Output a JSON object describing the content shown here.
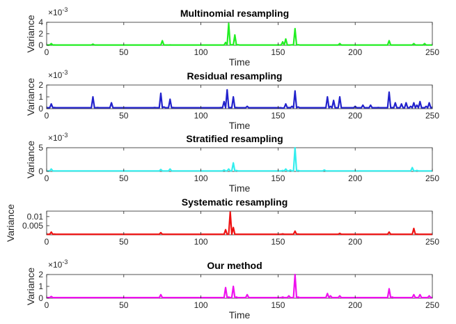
{
  "chart_data": [
    {
      "type": "line",
      "title": "Multinomial resampling",
      "xlabel": "Time",
      "ylabel": "Variance",
      "multiplier": "×10",
      "multiplier_exp": "-3",
      "color": "#22ee22",
      "xlim": [
        0,
        250
      ],
      "ylim": [
        0,
        4
      ],
      "xticks": [
        0,
        50,
        100,
        150,
        200,
        250
      ],
      "yticks": [
        0,
        2,
        4
      ],
      "ytick_labels": [
        "0",
        "2",
        "4"
      ],
      "baseline": 0.05,
      "x": [
        0,
        3,
        5,
        8,
        30,
        70,
        75,
        80,
        113,
        116,
        118,
        120,
        122,
        124,
        150,
        153,
        155,
        157,
        159,
        161,
        163,
        165,
        190,
        220,
        222,
        225,
        238,
        245
      ],
      "y": [
        0.05,
        0.3,
        0.06,
        0.05,
        0.2,
        0.05,
        0.8,
        0.06,
        0.05,
        0.5,
        3.8,
        0.1,
        1.8,
        0.1,
        0.05,
        0.6,
        1.1,
        0.05,
        0.08,
        2.9,
        0.1,
        0.05,
        0.3,
        0.05,
        0.8,
        0.05,
        0.3,
        0.3
      ]
    },
    {
      "type": "line",
      "title": "Residual resampling",
      "xlabel": "Time",
      "ylabel": "Variance",
      "multiplier": "×10",
      "multiplier_exp": "-3",
      "color": "#2222cc",
      "xlim": [
        0,
        250
      ],
      "ylim": [
        0,
        2
      ],
      "xticks": [
        0,
        50,
        100,
        150,
        200,
        250
      ],
      "yticks": [
        0,
        1,
        2
      ],
      "ytick_labels": [
        "0",
        "1",
        "2"
      ],
      "baseline": 0.08,
      "x": [
        0,
        3,
        5,
        8,
        30,
        33,
        42,
        45,
        70,
        74,
        76,
        80,
        82,
        113,
        115,
        117,
        119,
        121,
        123,
        130,
        153,
        155,
        157,
        159,
        161,
        163,
        165,
        182,
        184,
        186,
        190,
        200,
        205,
        210,
        215,
        222,
        224,
        226,
        230,
        233,
        236,
        238,
        240,
        242,
        246,
        248,
        250
      ],
      "y": [
        0.08,
        0.4,
        0.1,
        0.08,
        1.0,
        0.1,
        0.5,
        0.08,
        0.1,
        1.3,
        0.15,
        0.8,
        0.1,
        0.1,
        0.6,
        1.6,
        0.1,
        1.0,
        0.1,
        0.2,
        0.05,
        0.4,
        0.1,
        0.2,
        1.5,
        0.15,
        0.08,
        1.0,
        0.2,
        0.7,
        1.0,
        0.2,
        0.3,
        0.3,
        0.1,
        1.4,
        0.1,
        0.5,
        0.4,
        0.5,
        0.2,
        0.5,
        0.3,
        0.6,
        0.2,
        0.5,
        0.1
      ]
    },
    {
      "type": "line",
      "title": "Stratified resampling",
      "xlabel": "Time",
      "ylabel": "Variance",
      "multiplier": "×10",
      "multiplier_exp": "-3",
      "color": "#33eeee",
      "xlim": [
        0,
        250
      ],
      "ylim": [
        0,
        5
      ],
      "xticks": [
        0,
        50,
        100,
        150,
        200,
        250
      ],
      "yticks": [
        0,
        5
      ],
      "ytick_labels": [
        "0",
        "5"
      ],
      "baseline": 0.1,
      "x": [
        0,
        3,
        5,
        74,
        80,
        115,
        118,
        121,
        123,
        153,
        155,
        158,
        161,
        163,
        180,
        237,
        240
      ],
      "y": [
        0.1,
        0.5,
        0.1,
        0.4,
        0.5,
        0.3,
        0.5,
        1.8,
        0.2,
        0.2,
        0.5,
        0.3,
        5.0,
        0.2,
        0.3,
        0.8,
        0.2
      ]
    },
    {
      "type": "line",
      "title": "Systematic resampling",
      "xlabel": "",
      "ylabel": "Variance",
      "multiplier": "",
      "multiplier_exp": "",
      "color": "#ee1111",
      "xlim": [
        0,
        250
      ],
      "ylim": [
        0,
        0.013
      ],
      "xticks": [
        0,
        50,
        100,
        150,
        200,
        250
      ],
      "yticks": [
        0.005,
        0.01
      ],
      "ytick_labels": [
        "0.005",
        "0.01"
      ],
      "baseline": 0.0003,
      "x": [
        0,
        3,
        5,
        74,
        113,
        116,
        119,
        121,
        123,
        153,
        161,
        163,
        190,
        222,
        238,
        240
      ],
      "y": [
        0.0003,
        0.0015,
        0.0004,
        0.0012,
        0.0003,
        0.0028,
        0.0125,
        0.004,
        0.0003,
        0.0005,
        0.002,
        0.0004,
        0.0008,
        0.0015,
        0.0035,
        0.0004
      ]
    },
    {
      "type": "line",
      "title": "Our method",
      "xlabel": "Time",
      "ylabel": "Variance",
      "multiplier": "×10",
      "multiplier_exp": "-3",
      "color": "#ee11ee",
      "xlim": [
        0,
        250
      ],
      "ylim": [
        0,
        2
      ],
      "xticks": [
        0,
        50,
        100,
        150,
        200,
        250
      ],
      "yticks": [
        0,
        1,
        2
      ],
      "ytick_labels": [
        "0",
        "1",
        "2"
      ],
      "baseline": 0.05,
      "x": [
        0,
        3,
        5,
        74,
        113,
        116,
        118,
        121,
        123,
        130,
        153,
        157,
        161,
        163,
        182,
        184,
        190,
        222,
        224,
        238,
        242,
        248
      ],
      "y": [
        0.05,
        0.15,
        0.05,
        0.3,
        0.05,
        0.9,
        0.1,
        1.0,
        0.1,
        0.3,
        0.1,
        0.2,
        2.0,
        0.1,
        0.4,
        0.2,
        0.2,
        0.8,
        0.1,
        0.3,
        0.3,
        0.2
      ]
    }
  ]
}
